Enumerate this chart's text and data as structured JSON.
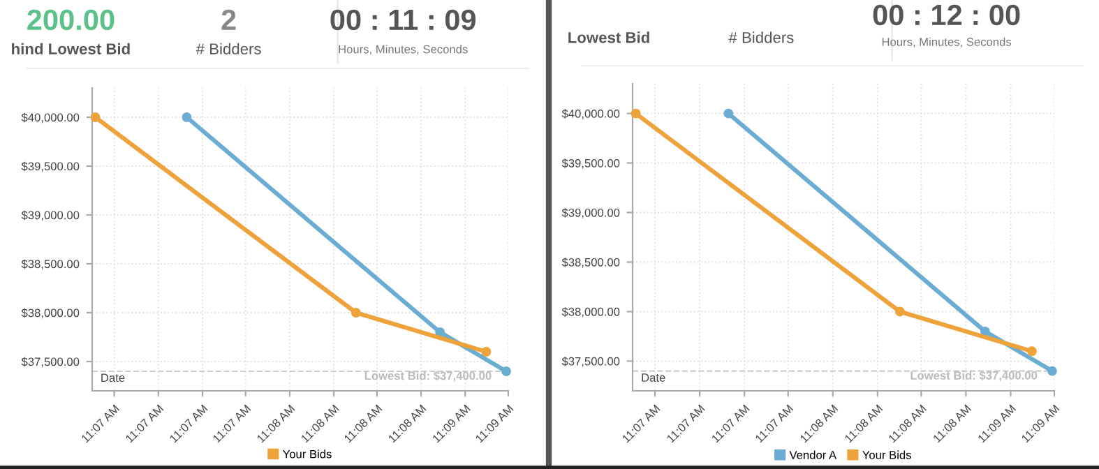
{
  "chart_data": [
    {
      "type": "other",
      "annotations": [
        "200.00",
        "hind Lowest Bid",
        "2",
        "# Bidders",
        "00 : 11 : 09",
        "Hours, Minutes, Seconds"
      ]
    },
    {
      "type": "line",
      "xlabel": "Date",
      "marker": "circle",
      "line_style": "solid",
      "grid": true,
      "legend": "bottom",
      "xlim": [
        11.1083,
        11.1479
      ],
      "xticks": [
        {
          "value": 11.1104,
          "label": "11:07 AM"
        },
        {
          "value": 11.1146,
          "label": "11:07 AM"
        },
        {
          "value": 11.1188,
          "label": "11:07 AM"
        },
        {
          "value": 11.1229,
          "label": "11:07 AM"
        },
        {
          "value": 11.1271,
          "label": "11:08 AM"
        },
        {
          "value": 11.1313,
          "label": "11:08 AM"
        },
        {
          "value": 11.1354,
          "label": "11:08 AM"
        },
        {
          "value": 11.1396,
          "label": "11:08 AM"
        },
        {
          "value": 11.1438,
          "label": "11:09 AM"
        },
        {
          "value": 11.1479,
          "label": "11:09 AM"
        }
      ],
      "ylim": [
        37200,
        40300
      ],
      "yticks": [
        {
          "value": 37500,
          "label": "$37,500.00"
        },
        {
          "value": 38000,
          "label": "$38,000.00"
        },
        {
          "value": 38500,
          "label": "$38,500.00"
        },
        {
          "value": 39000,
          "label": "$39,000.00"
        },
        {
          "value": 39500,
          "label": "$39,500.00"
        },
        {
          "value": 40000,
          "label": "$40,000.00"
        }
      ],
      "ref_lines": [
        {
          "axis": "y",
          "value": 37400,
          "label": "Lowest Bid: $37,400.00",
          "color": "#cccccc",
          "line_style": "dashed"
        }
      ],
      "series": [
        {
          "color": "#6badd2",
          "x": [
            11.1173,
            11.1414,
            11.1477
          ],
          "values": [
            40000,
            37800,
            37400
          ]
        },
        {
          "name": "Your Bids",
          "color": "#eea23a",
          "x": [
            11.1086,
            11.1334,
            11.1458
          ],
          "values": [
            40000,
            38000,
            37600
          ]
        }
      ]
    },
    {
      "type": "other",
      "annotations": [
        "Lowest Bid",
        "# Bidders",
        "00 : 12 : 00",
        "Hours, Minutes, Seconds"
      ]
    },
    {
      "type": "line",
      "xlabel": "Date",
      "marker": "circle",
      "line_style": "solid",
      "grid": true,
      "legend": "bottom",
      "xlim": [
        11.1083,
        11.1479
      ],
      "xticks": [
        {
          "value": 11.1104,
          "label": "11:07 AM"
        },
        {
          "value": 11.1146,
          "label": "11:07 AM"
        },
        {
          "value": 11.1188,
          "label": "11:07 AM"
        },
        {
          "value": 11.1229,
          "label": "11:07 AM"
        },
        {
          "value": 11.1271,
          "label": "11:08 AM"
        },
        {
          "value": 11.1313,
          "label": "11:08 AM"
        },
        {
          "value": 11.1354,
          "label": "11:08 AM"
        },
        {
          "value": 11.1396,
          "label": "11:08 AM"
        },
        {
          "value": 11.1438,
          "label": "11:09 AM"
        },
        {
          "value": 11.1479,
          "label": "11:09 AM"
        }
      ],
      "ylim": [
        37200,
        40300
      ],
      "yticks": [
        {
          "value": 37500,
          "label": "$37,500.00"
        },
        {
          "value": 38000,
          "label": "$38,000.00"
        },
        {
          "value": 38500,
          "label": "$38,500.00"
        },
        {
          "value": 39000,
          "label": "$39,000.00"
        },
        {
          "value": 39500,
          "label": "$39,500.00"
        },
        {
          "value": 40000,
          "label": "$40,000.00"
        }
      ],
      "ref_lines": [
        {
          "axis": "y",
          "value": 37400,
          "label": "Lowest Bid: $37,400.00",
          "color": "#cccccc",
          "line_style": "dashed"
        }
      ],
      "series": [
        {
          "name": "Vendor A",
          "color": "#6badd2",
          "x": [
            11.1173,
            11.1414,
            11.1477
          ],
          "values": [
            40000,
            37800,
            37400
          ]
        },
        {
          "name": "Your Bids",
          "color": "#eea23a",
          "x": [
            11.1086,
            11.1334,
            11.1458
          ],
          "values": [
            40000,
            38000,
            37600
          ]
        }
      ]
    }
  ]
}
